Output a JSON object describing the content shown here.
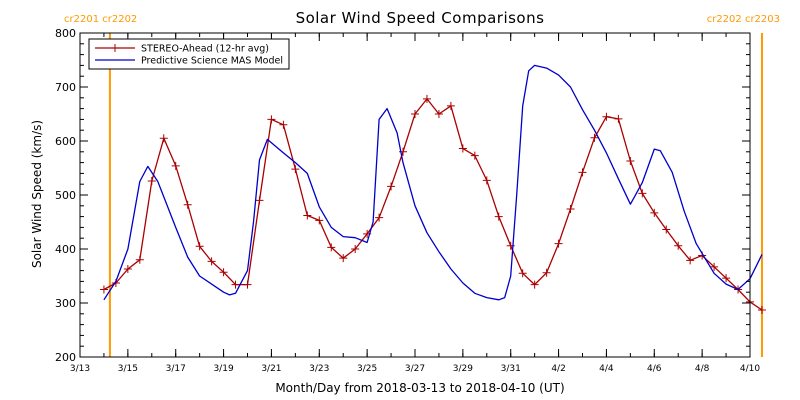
{
  "chart_data": {
    "type": "line",
    "title": "Solar Wind Speed Comparisons",
    "xlabel": "Month/Day from 2018-03-13 to 2018-04-10 (UT)",
    "ylabel": "Solar Wind Speed (km/s)",
    "x_range": [
      "2018-03-13",
      "2018-04-10"
    ],
    "ylim": [
      200,
      800
    ],
    "y_ticks": [
      200,
      300,
      400,
      500,
      600,
      700,
      800
    ],
    "x_ticks": [
      "3/13",
      "3/15",
      "3/17",
      "3/19",
      "3/21",
      "3/23",
      "3/25",
      "3/27",
      "3/29",
      "3/31",
      "4/2",
      "4/4",
      "4/6",
      "4/8",
      "4/10"
    ],
    "legend_position": "top-left",
    "carrington_markers": [
      {
        "label": "cr2201 cr2202",
        "x": "2018-03-14 06:00",
        "label_side": "left"
      },
      {
        "label": "cr2202 cr2203",
        "x": "2018-04-10 12:00",
        "label_side": "right"
      }
    ],
    "series": [
      {
        "name": "STEREO-Ahead (12-hr avg)",
        "color": "#aa0000",
        "markers": "plus",
        "points": [
          [
            "2018-03-14 00:00",
            325
          ],
          [
            "2018-03-14 12:00",
            337
          ],
          [
            "2018-03-15 00:00",
            363
          ],
          [
            "2018-03-15 12:00",
            380
          ],
          [
            "2018-03-16 00:00",
            526
          ],
          [
            "2018-03-16 12:00",
            605
          ],
          [
            "2018-03-17 00:00",
            554
          ],
          [
            "2018-03-17 12:00",
            482
          ],
          [
            "2018-03-18 00:00",
            405
          ],
          [
            "2018-03-18 12:00",
            377
          ],
          [
            "2018-03-19 00:00",
            357
          ],
          [
            "2018-03-19 12:00",
            334
          ],
          [
            "2018-03-20 00:00",
            334
          ],
          [
            "2018-03-20 12:00",
            490
          ],
          [
            "2018-03-21 00:00",
            640
          ],
          [
            "2018-03-21 12:00",
            630
          ],
          [
            "2018-03-22 00:00",
            548
          ],
          [
            "2018-03-22 12:00",
            462
          ],
          [
            "2018-03-23 00:00",
            453
          ],
          [
            "2018-03-23 12:00",
            403
          ],
          [
            "2018-03-24 00:00",
            383
          ],
          [
            "2018-03-24 12:00",
            400
          ],
          [
            "2018-03-25 00:00",
            428
          ],
          [
            "2018-03-25 12:00",
            458
          ],
          [
            "2018-03-26 00:00",
            516
          ],
          [
            "2018-03-26 12:00",
            580
          ],
          [
            "2018-03-27 00:00",
            650
          ],
          [
            "2018-03-27 12:00",
            678
          ],
          [
            "2018-03-28 00:00",
            650
          ],
          [
            "2018-03-28 12:00",
            665
          ],
          [
            "2018-03-29 00:00",
            586
          ],
          [
            "2018-03-29 12:00",
            573
          ],
          [
            "2018-03-30 00:00",
            527
          ],
          [
            "2018-03-30 12:00",
            460
          ],
          [
            "2018-03-31 00:00",
            406
          ],
          [
            "2018-03-31 12:00",
            355
          ],
          [
            "2018-04-01 00:00",
            334
          ],
          [
            "2018-04-01 12:00",
            356
          ],
          [
            "2018-04-02 00:00",
            410
          ],
          [
            "2018-04-02 12:00",
            474
          ],
          [
            "2018-04-03 00:00",
            542
          ],
          [
            "2018-04-03 12:00",
            606
          ],
          [
            "2018-04-04 00:00",
            645
          ],
          [
            "2018-04-04 12:00",
            641
          ],
          [
            "2018-04-05 00:00",
            563
          ],
          [
            "2018-04-05 12:00",
            503
          ],
          [
            "2018-04-06 00:00",
            467
          ],
          [
            "2018-04-06 12:00",
            436
          ],
          [
            "2018-04-07 00:00",
            406
          ],
          [
            "2018-04-07 12:00",
            379
          ],
          [
            "2018-04-08 00:00",
            388
          ],
          [
            "2018-04-08 12:00",
            367
          ],
          [
            "2018-04-09 00:00",
            346
          ],
          [
            "2018-04-09 12:00",
            325
          ],
          [
            "2018-04-10 00:00",
            302
          ],
          [
            "2018-04-10 12:00",
            287
          ]
        ]
      },
      {
        "name": "Predictive Science MAS Model",
        "color": "#0000cc",
        "markers": "none",
        "points": [
          [
            "2018-03-14 00:00",
            306
          ],
          [
            "2018-03-14 12:00",
            340
          ],
          [
            "2018-03-15 00:00",
            400
          ],
          [
            "2018-03-15 12:00",
            525
          ],
          [
            "2018-03-15 20:00",
            553
          ],
          [
            "2018-03-16 06:00",
            525
          ],
          [
            "2018-03-17 00:00",
            440
          ],
          [
            "2018-03-17 12:00",
            385
          ],
          [
            "2018-03-18 00:00",
            350
          ],
          [
            "2018-03-18 12:00",
            335
          ],
          [
            "2018-03-19 00:00",
            320
          ],
          [
            "2018-03-19 06:00",
            315
          ],
          [
            "2018-03-19 12:00",
            318
          ],
          [
            "2018-03-20 00:00",
            360
          ],
          [
            "2018-03-20 06:00",
            450
          ],
          [
            "2018-03-20 12:00",
            565
          ],
          [
            "2018-03-20 20:00",
            603
          ],
          [
            "2018-03-21 12:00",
            578
          ],
          [
            "2018-03-22 00:00",
            560
          ],
          [
            "2018-03-22 12:00",
            540
          ],
          [
            "2018-03-23 00:00",
            478
          ],
          [
            "2018-03-23 12:00",
            440
          ],
          [
            "2018-03-24 00:00",
            423
          ],
          [
            "2018-03-24 12:00",
            421
          ],
          [
            "2018-03-25 00:00",
            412
          ],
          [
            "2018-03-25 06:00",
            450
          ],
          [
            "2018-03-25 12:00",
            640
          ],
          [
            "2018-03-25 20:00",
            660
          ],
          [
            "2018-03-26 06:00",
            615
          ],
          [
            "2018-03-26 12:00",
            560
          ],
          [
            "2018-03-27 00:00",
            480
          ],
          [
            "2018-03-27 12:00",
            430
          ],
          [
            "2018-03-28 00:00",
            395
          ],
          [
            "2018-03-28 12:00",
            363
          ],
          [
            "2018-03-29 00:00",
            337
          ],
          [
            "2018-03-29 12:00",
            318
          ],
          [
            "2018-03-30 00:00",
            310
          ],
          [
            "2018-03-30 12:00",
            306
          ],
          [
            "2018-03-30 18:00",
            310
          ],
          [
            "2018-03-31 00:00",
            350
          ],
          [
            "2018-03-31 06:00",
            500
          ],
          [
            "2018-03-31 12:00",
            665
          ],
          [
            "2018-03-31 18:00",
            730
          ],
          [
            "2018-04-01 00:00",
            740
          ],
          [
            "2018-04-01 12:00",
            735
          ],
          [
            "2018-04-02 00:00",
            722
          ],
          [
            "2018-04-02 12:00",
            700
          ],
          [
            "2018-04-03 00:00",
            658
          ],
          [
            "2018-04-03 12:00",
            620
          ],
          [
            "2018-04-04 00:00",
            578
          ],
          [
            "2018-04-04 12:00",
            530
          ],
          [
            "2018-04-05 00:00",
            483
          ],
          [
            "2018-04-05 12:00",
            523
          ],
          [
            "2018-04-06 00:00",
            585
          ],
          [
            "2018-04-06 06:00",
            582
          ],
          [
            "2018-04-06 18:00",
            542
          ],
          [
            "2018-04-07 06:00",
            470
          ],
          [
            "2018-04-07 18:00",
            410
          ],
          [
            "2018-04-08 12:00",
            355
          ],
          [
            "2018-04-09 00:00",
            335
          ],
          [
            "2018-04-09 12:00",
            325
          ],
          [
            "2018-04-10 00:00",
            345
          ],
          [
            "2018-04-10 12:00",
            390
          ]
        ]
      }
    ]
  }
}
